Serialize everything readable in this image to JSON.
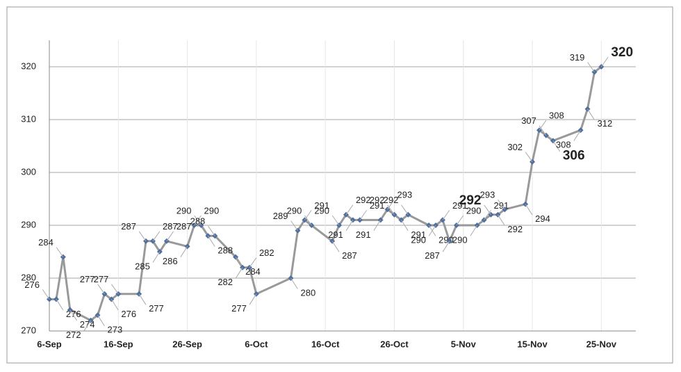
{
  "chart_data": {
    "type": "line",
    "x": [
      "6-Sep",
      "7-Sep",
      "8-Sep",
      "9-Sep",
      "12-Sep",
      "13-Sep",
      "14-Sep",
      "15-Sep",
      "16-Sep",
      "19-Sep",
      "20-Sep",
      "21-Sep",
      "22-Sep",
      "23-Sep",
      "26-Sep",
      "27-Sep",
      "28-Sep",
      "29-Sep",
      "30-Sep",
      "3-Oct",
      "4-Oct",
      "5-Oct",
      "6-Oct",
      "11-Oct",
      "12-Oct",
      "13-Oct",
      "14-Oct",
      "17-Oct",
      "18-Oct",
      "19-Oct",
      "20-Oct",
      "21-Oct",
      "24-Oct",
      "25-Oct",
      "26-Oct",
      "27-Oct",
      "28-Oct",
      "31-Oct",
      "1-Nov",
      "2-Nov",
      "3-Nov",
      "4-Nov",
      "7-Nov",
      "8-Nov",
      "9-Nov",
      "10-Nov",
      "11-Nov",
      "14-Nov",
      "15-Nov",
      "16-Nov",
      "17-Nov",
      "18-Nov",
      "22-Nov",
      "23-Nov",
      "24-Nov",
      "25-Nov"
    ],
    "values": [
      276,
      276,
      284,
      274,
      272,
      273,
      277,
      276,
      277,
      277,
      287,
      287,
      285,
      287,
      286,
      290,
      290,
      288,
      288,
      284,
      282,
      282,
      277,
      280,
      289,
      291,
      290,
      287,
      290,
      292,
      291,
      291,
      291,
      293,
      292,
      291,
      292,
      290,
      290,
      291,
      287,
      290,
      290,
      291,
      292,
      292,
      293,
      294,
      302,
      308,
      307,
      306,
      308,
      312,
      319,
      320
    ],
    "color": "#999999",
    "marker_color": "#4f6f9f",
    "xlim": [
      "6-Sep",
      "30-Nov"
    ],
    "xticks": [
      "6-Sep",
      "16-Sep",
      "26-Sep",
      "6-Oct",
      "16-Oct",
      "26-Oct",
      "5-Nov",
      "15-Nov",
      "25-Nov"
    ],
    "ylim": [
      270,
      325
    ],
    "yticks": [
      270,
      280,
      290,
      300,
      310,
      320
    ],
    "grid": true
  }
}
